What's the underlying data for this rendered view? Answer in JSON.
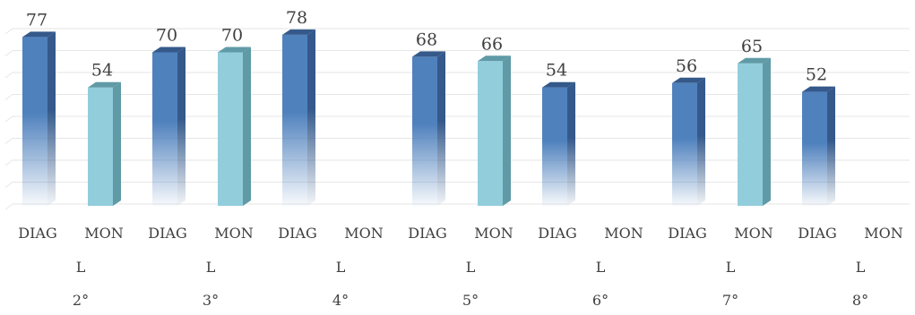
{
  "chart_data": {
    "type": "bar",
    "title": "",
    "xlabel": "",
    "ylabel": "",
    "ylim": [
      0,
      80
    ],
    "grid": true,
    "legend": "none",
    "groups": [
      {
        "label": "2°",
        "sub": "L",
        "categories": [
          "DIAG",
          "MON"
        ],
        "values": [
          77,
          54
        ]
      },
      {
        "label": "3°",
        "sub": "L",
        "categories": [
          "DIAG",
          "MON"
        ],
        "values": [
          70,
          70
        ]
      },
      {
        "label": "4°",
        "sub": "L",
        "categories": [
          "DIAG",
          "MON"
        ],
        "values": [
          78,
          null
        ]
      },
      {
        "label": "5°",
        "sub": "L",
        "categories": [
          "DIAG",
          "MON"
        ],
        "values": [
          68,
          66
        ]
      },
      {
        "label": "6°",
        "sub": "L",
        "categories": [
          "DIAG",
          "MON"
        ],
        "values": [
          54,
          null
        ]
      },
      {
        "label": "7°",
        "sub": "L",
        "categories": [
          "DIAG",
          "MON"
        ],
        "values": [
          56,
          65
        ]
      },
      {
        "label": "8°",
        "sub": "L",
        "categories": [
          "DIAG",
          "MON"
        ],
        "values": [
          52,
          null
        ]
      }
    ],
    "colors": {
      "DIAG": "#4f81bd",
      "DIAG_side": "#34598a",
      "MON": "#92cddc",
      "MON_side": "#5f9aa6",
      "grid": "#e6e6e6",
      "text": "#404040"
    }
  }
}
